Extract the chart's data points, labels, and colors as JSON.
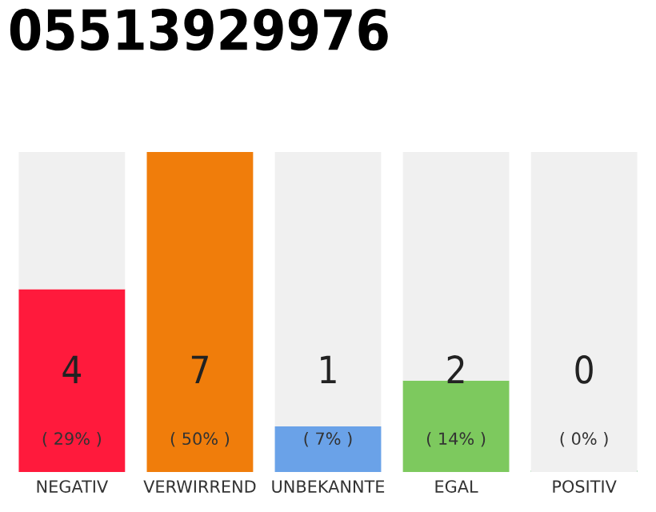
{
  "chart_data": {
    "type": "bar",
    "title": "05513929976",
    "stacked": true,
    "categories": [
      "NEGATIV",
      "VERWIRREND",
      "UNBEKANNTE",
      "EGAL",
      "POSITIV"
    ],
    "series": [
      {
        "colors": [
          "#ff1a3c",
          "#f07d0b",
          "#6aa2e8",
          "#7dc95e",
          "#2ea84a"
        ],
        "values": [
          4,
          7,
          1,
          2,
          0
        ],
        "value_labels": [
          "4",
          "7",
          "1",
          "2",
          "0"
        ]
      },
      {
        "color": "#f0f0f0",
        "values": [
          3,
          0,
          6,
          5,
          7
        ]
      }
    ],
    "annotations": [
      "( 29% )",
      "( 50% )",
      "( 7% )",
      "( 14% )",
      "( 0% )"
    ],
    "ylim": [
      0,
      7
    ],
    "tick_labels": "x",
    "grid": false,
    "legend": false
  }
}
